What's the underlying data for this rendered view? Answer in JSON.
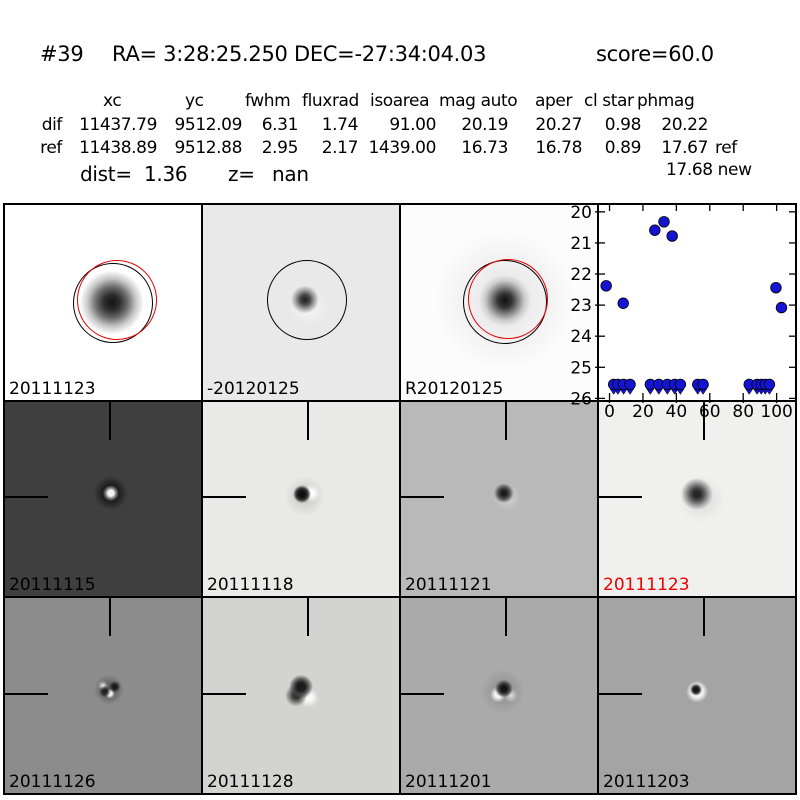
{
  "title": {
    "id": "#39",
    "coords": "RA= 3:28:25.250 DEC=-27:34:04.03",
    "score": "score=60.0"
  },
  "measurements": {
    "headers": [
      "xc",
      "yc",
      "fwhm",
      "fluxrad",
      "isoarea",
      "mag auto",
      "aper",
      "cl star",
      "phmag"
    ],
    "rows": [
      {
        "label": "dif",
        "values": [
          "11437.79",
          "9512.09",
          "6.31",
          "1.74",
          "91.00",
          "20.19",
          "20.27",
          "0.98",
          "20.22"
        ],
        "suffix": ""
      },
      {
        "label": "ref",
        "values": [
          "11438.89",
          "9512.88",
          "2.95",
          "2.17",
          "1439.00",
          "16.73",
          "16.78",
          "0.89",
          "17.67"
        ],
        "suffix": "ref"
      }
    ],
    "phmag_new": "17.68 new",
    "dist_label": "dist=",
    "dist_value": "1.36",
    "z_label": "z=",
    "z_value": "nan"
  },
  "stamps": {
    "row1": [
      {
        "label": "20111123",
        "bg": "#ffffff",
        "label_color": "#000000"
      },
      {
        "label": "-20120125",
        "bg": "#e9e9e9",
        "label_color": "#000000"
      },
      {
        "label": "R20120125",
        "bg": "#fcfcfc",
        "label_color": "#000000"
      }
    ],
    "row2": [
      {
        "label": "20111115",
        "bg": "#3f3f3f",
        "label_color": "#000000"
      },
      {
        "label": "20111118",
        "bg": "#e9e9e7",
        "label_color": "#000000"
      },
      {
        "label": "20111121",
        "bg": "#b9b9b9",
        "label_color": "#000000"
      },
      {
        "label": "20111123",
        "bg": "#f0f0ee",
        "label_color": "#ee0000"
      }
    ],
    "row3": [
      {
        "label": "20111126",
        "bg": "#8c8c8c",
        "label_color": "#000000"
      },
      {
        "label": "20111128",
        "bg": "#d3d3d1",
        "label_color": "#000000"
      },
      {
        "label": "20111201",
        "bg": "#aaaaaa",
        "label_color": "#000000"
      },
      {
        "label": "20111203",
        "bg": "#a4a4a4",
        "label_color": "#000000"
      }
    ],
    "aperture_circle_colors": {
      "black": "#000000",
      "red": "#e60000"
    }
  },
  "chart_data": {
    "type": "scatter",
    "title": "",
    "xlabel": "",
    "ylabel": "",
    "note": "light curve: magnitude vs epoch, y-axis inverted (bright up)",
    "xlim": [
      -6.3,
      111.0
    ],
    "ylim": [
      26.02,
      19.78
    ],
    "xticks": [
      0,
      20,
      40,
      60,
      80,
      100
    ],
    "yticks": [
      20,
      21,
      22,
      23,
      24,
      25,
      26
    ],
    "grid": false,
    "legend": false,
    "marker_color": "#1414d2",
    "series": [
      {
        "name": "detections",
        "marker": "circle",
        "points": [
          [
            -2.0,
            22.38
          ],
          [
            8.2,
            22.94
          ],
          [
            27.1,
            20.59
          ],
          [
            32.6,
            20.32
          ],
          [
            37.5,
            20.78
          ],
          [
            99.6,
            22.44
          ],
          [
            102.9,
            23.08
          ]
        ]
      },
      {
        "name": "upper-limits",
        "marker": "circle-caretdown",
        "limit_y": 25.55,
        "x": [
          2.5,
          5.0,
          8.4,
          12.3,
          24.4,
          29.5,
          34.6,
          39.0,
          42.4,
          52.8,
          56.0,
          83.6,
          88.3,
          90.8,
          93.2,
          95.7
        ]
      }
    ]
  }
}
